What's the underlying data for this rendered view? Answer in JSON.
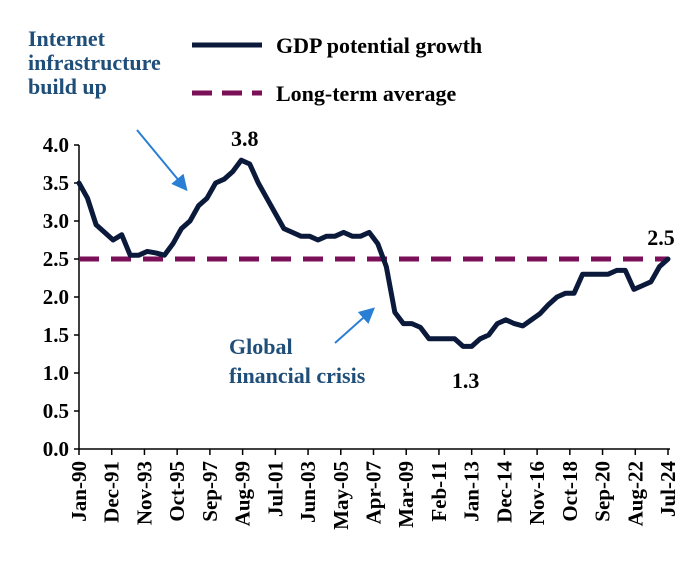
{
  "chart_data": {
    "type": "line",
    "title": "",
    "xlabel": "",
    "ylabel": "",
    "ylim": [
      0,
      4.0
    ],
    "yticks": [
      "0.0",
      "0.5",
      "1.0",
      "1.5",
      "2.0",
      "2.5",
      "3.0",
      "3.5",
      "4.0"
    ],
    "xticks": [
      "Jan-90",
      "Dec-91",
      "Nov-93",
      "Oct-95",
      "Sep-97",
      "Aug-99",
      "Jul-01",
      "Jun-03",
      "May-05",
      "Apr-07",
      "Mar-09",
      "Feb-11",
      "Jan-13",
      "Dec-14",
      "Nov-16",
      "Oct-18",
      "Sep-20",
      "Aug-22",
      "Jul-24"
    ],
    "grid": false,
    "legend_position": "top",
    "series": [
      {
        "name": "GDP potential growth",
        "color": "#0b1a3a",
        "x": [
          1990.0,
          1990.5,
          1991.0,
          1991.5,
          1992.0,
          1992.5,
          1993.0,
          1993.5,
          1994.0,
          1994.5,
          1995.0,
          1995.5,
          1996.0,
          1996.5,
          1997.0,
          1997.5,
          1998.0,
          1998.5,
          1999.0,
          1999.5,
          2000.0,
          2000.5,
          2001.0,
          2001.5,
          2002.0,
          2002.5,
          2003.0,
          2003.5,
          2004.0,
          2004.5,
          2005.0,
          2005.5,
          2006.0,
          2006.5,
          2007.0,
          2007.5,
          2008.0,
          2008.5,
          2009.0,
          2009.5,
          2010.0,
          2010.5,
          2011.0,
          2011.5,
          2012.0,
          2012.5,
          2013.0,
          2013.5,
          2014.0,
          2014.5,
          2015.0,
          2015.5,
          2016.0,
          2016.5,
          2017.0,
          2017.5,
          2018.0,
          2018.5,
          2019.0,
          2019.5,
          2020.0,
          2020.5,
          2021.0,
          2021.5,
          2022.0,
          2022.5,
          2023.0,
          2023.5,
          2024.0,
          2024.5
        ],
        "values": [
          3.5,
          3.3,
          2.95,
          2.85,
          2.75,
          2.82,
          2.55,
          2.55,
          2.6,
          2.58,
          2.55,
          2.7,
          2.9,
          3.0,
          3.2,
          3.3,
          3.5,
          3.55,
          3.65,
          3.8,
          3.75,
          3.5,
          3.3,
          3.1,
          2.9,
          2.85,
          2.8,
          2.8,
          2.75,
          2.8,
          2.8,
          2.85,
          2.8,
          2.8,
          2.85,
          2.7,
          2.4,
          1.8,
          1.65,
          1.65,
          1.6,
          1.45,
          1.45,
          1.45,
          1.45,
          1.35,
          1.35,
          1.45,
          1.5,
          1.65,
          1.7,
          1.65,
          1.62,
          1.7,
          1.78,
          1.9,
          2.0,
          2.05,
          2.05,
          2.3,
          2.3,
          2.3,
          2.3,
          2.35,
          2.35,
          2.1,
          2.15,
          2.2,
          2.4,
          2.5
        ]
      },
      {
        "name": "Long-term average",
        "color": "#7b0f58",
        "style": "dashed",
        "value": 2.5
      }
    ],
    "annotations": [
      {
        "text": "3.8",
        "x": 2000.0,
        "y": 3.8
      },
      {
        "text": "1.3",
        "x": 2013.0,
        "y": 1.3
      },
      {
        "text": "2.5",
        "x": 2024.5,
        "y": 2.5
      },
      {
        "text_lines": [
          "Internet",
          "infrastructure",
          "build up"
        ],
        "color": "#1f4e79"
      },
      {
        "text_lines": [
          "Global",
          "financial crisis"
        ],
        "color": "#1f4e79"
      }
    ],
    "arrow_color": "#2a7fd4"
  }
}
